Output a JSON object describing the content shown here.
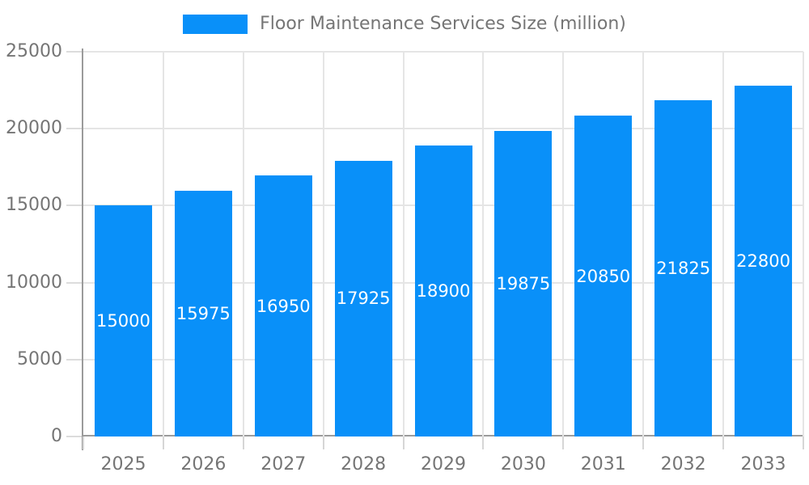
{
  "chart_data": {
    "type": "bar",
    "title": "Floor Maintenance Services Size (million)",
    "categories": [
      "2025",
      "2026",
      "2027",
      "2028",
      "2029",
      "2030",
      "2031",
      "2032",
      "2033"
    ],
    "values": [
      15000,
      15975,
      16950,
      17925,
      18900,
      19875,
      20850,
      21825,
      22800
    ],
    "series": [
      {
        "name": "Floor Maintenance Services Size (million)",
        "values": [
          15000,
          15975,
          16950,
          17925,
          18900,
          19875,
          20850,
          21825,
          22800
        ]
      }
    ],
    "xlabel": "",
    "ylabel": "",
    "ylim": [
      0,
      25000
    ],
    "yticks": [
      0,
      5000,
      10000,
      15000,
      20000,
      25000
    ],
    "grid": "horizontal-and-vertical",
    "legend_position": "top-center",
    "bar_labels_visible": true,
    "bar_label_position": "inside-center"
  },
  "colors": {
    "bar_fill": "#0990F9",
    "bar_value_text": "#FFFFFF",
    "axis_text": "#757575",
    "axis_line": "#9B9B9B",
    "gridline": "#E5E5E5",
    "background": "#FFFFFF"
  }
}
